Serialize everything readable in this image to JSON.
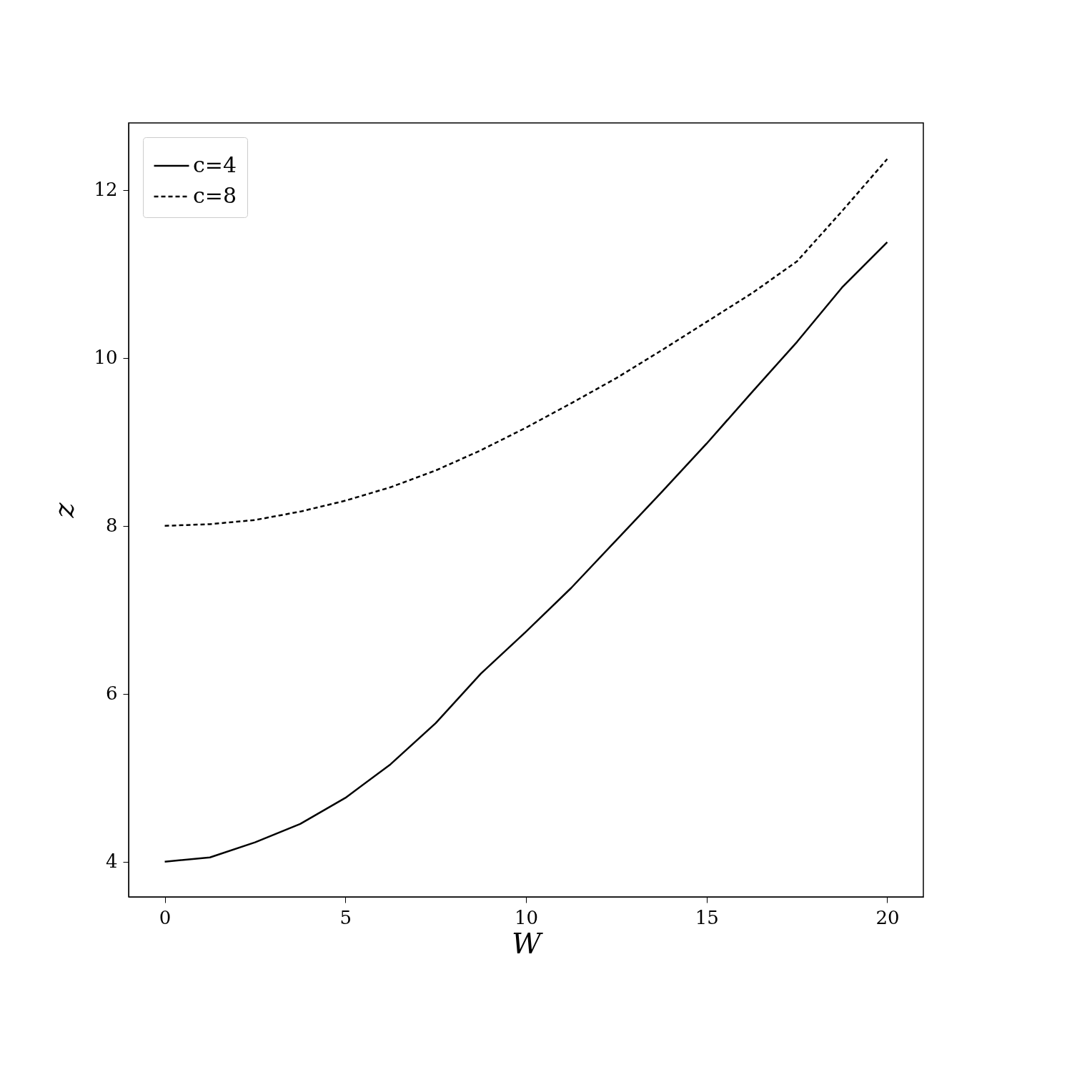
{
  "chart_data": {
    "type": "line",
    "xlabel": "W",
    "ylabel": "z",
    "xlim": [
      -1,
      21
    ],
    "ylim": [
      3.58,
      12.8
    ],
    "xticks": [
      0,
      5,
      10,
      15,
      20
    ],
    "yticks": [
      4,
      6,
      8,
      10,
      12
    ],
    "grid": false,
    "legend": "top left",
    "marker": "none",
    "series": [
      {
        "name": "c=4",
        "color": "#000000",
        "line_style": "solid",
        "x": [
          0,
          1.25,
          2.5,
          3.75,
          5,
          6.25,
          7.5,
          8.75,
          10,
          11.25,
          12.5,
          13.75,
          15,
          16.25,
          17.5,
          18.75,
          20
        ],
        "values": [
          4.0,
          4.05,
          4.23,
          4.45,
          4.76,
          5.16,
          5.65,
          6.24,
          6.74,
          7.26,
          7.83,
          8.4,
          8.98,
          9.59,
          10.19,
          10.84,
          11.38
        ]
      },
      {
        "name": "c=8",
        "color": "#000000",
        "line_style": "dashed",
        "x": [
          0,
          1.25,
          2.5,
          3.75,
          5,
          6.25,
          7.5,
          8.75,
          10,
          11.25,
          12.5,
          13.75,
          15,
          16.25,
          17.5,
          18.75,
          20
        ],
        "values": [
          8.0,
          8.02,
          8.07,
          8.17,
          8.3,
          8.46,
          8.66,
          8.9,
          9.17,
          9.46,
          9.76,
          10.09,
          10.43,
          10.77,
          11.15,
          11.75,
          12.37
        ]
      }
    ]
  }
}
